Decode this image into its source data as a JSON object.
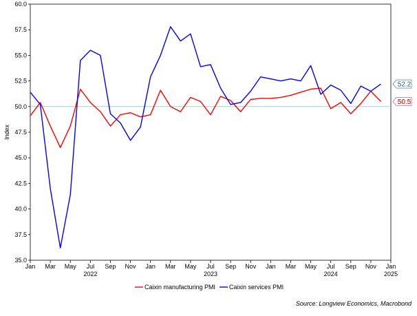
{
  "chart_data": {
    "type": "line",
    "ylabel": "Index",
    "ylim": [
      35.0,
      60.0
    ],
    "yticks": [
      "60.0",
      "57.5",
      "55.0",
      "52.5",
      "50.0",
      "47.5",
      "45.0",
      "42.5",
      "40.0",
      "37.5",
      "35.0"
    ],
    "xlim": [
      "2022-01",
      "2025-01"
    ],
    "xticks": [
      {
        "date": "2022-01",
        "label": "Jan",
        "year": ""
      },
      {
        "date": "2022-03",
        "label": "Mar",
        "year": ""
      },
      {
        "date": "2022-05",
        "label": "May",
        "year": ""
      },
      {
        "date": "2022-07",
        "label": "Jul",
        "year": "2022"
      },
      {
        "date": "2022-09",
        "label": "Sep",
        "year": ""
      },
      {
        "date": "2022-11",
        "label": "Nov",
        "year": ""
      },
      {
        "date": "2023-01",
        "label": "Jan",
        "year": ""
      },
      {
        "date": "2023-03",
        "label": "Mar",
        "year": ""
      },
      {
        "date": "2023-05",
        "label": "May",
        "year": ""
      },
      {
        "date": "2023-07",
        "label": "Jul",
        "year": "2023"
      },
      {
        "date": "2023-09",
        "label": "Sep",
        "year": ""
      },
      {
        "date": "2023-11",
        "label": "Nov",
        "year": ""
      },
      {
        "date": "2024-01",
        "label": "Jan",
        "year": ""
      },
      {
        "date": "2024-03",
        "label": "Mar",
        "year": ""
      },
      {
        "date": "2024-05",
        "label": "May",
        "year": ""
      },
      {
        "date": "2024-07",
        "label": "Jul",
        "year": "2024"
      },
      {
        "date": "2024-09",
        "label": "Sep",
        "year": ""
      },
      {
        "date": "2024-11",
        "label": "Nov",
        "year": ""
      },
      {
        "date": "2025-01",
        "label": "Jan",
        "year": "2025"
      }
    ],
    "reference_line": 50.0,
    "series": [
      {
        "name": "Caixin manufacturing PMI",
        "color": "#ff0000",
        "end_label": "50.5",
        "x": [
          "2022-01",
          "2022-02",
          "2022-03",
          "2022-04",
          "2022-05",
          "2022-06",
          "2022-07",
          "2022-08",
          "2022-09",
          "2022-10",
          "2022-11",
          "2022-12",
          "2023-01",
          "2023-02",
          "2023-03",
          "2023-04",
          "2023-05",
          "2023-06",
          "2023-07",
          "2023-08",
          "2023-09",
          "2023-10",
          "2023-11",
          "2023-12",
          "2024-01",
          "2024-02",
          "2024-03",
          "2024-04",
          "2024-05",
          "2024-06",
          "2024-07",
          "2024-08",
          "2024-09",
          "2024-10",
          "2024-11",
          "2024-12"
        ],
        "values": [
          49.1,
          50.4,
          48.1,
          46.0,
          48.1,
          51.7,
          50.4,
          49.5,
          48.1,
          49.2,
          49.4,
          49.0,
          49.2,
          51.6,
          50.0,
          49.5,
          50.9,
          50.5,
          49.2,
          51.0,
          50.6,
          49.5,
          50.7,
          50.8,
          50.8,
          50.9,
          51.1,
          51.4,
          51.7,
          51.8,
          49.8,
          50.4,
          49.3,
          50.3,
          51.5,
          50.5
        ]
      },
      {
        "name": "Caixin services PMI",
        "color": "#0000ff",
        "end_label": "52.2",
        "x": [
          "2022-01",
          "2022-02",
          "2022-03",
          "2022-04",
          "2022-05",
          "2022-06",
          "2022-07",
          "2022-08",
          "2022-09",
          "2022-10",
          "2022-11",
          "2022-12",
          "2023-01",
          "2023-02",
          "2023-03",
          "2023-04",
          "2023-05",
          "2023-06",
          "2023-07",
          "2023-08",
          "2023-09",
          "2023-10",
          "2023-11",
          "2023-12",
          "2024-01",
          "2024-02",
          "2024-03",
          "2024-04",
          "2024-05",
          "2024-06",
          "2024-07",
          "2024-08",
          "2024-09",
          "2024-10",
          "2024-11",
          "2024-12"
        ],
        "values": [
          51.4,
          50.2,
          42.0,
          36.2,
          41.4,
          54.5,
          55.5,
          55.0,
          49.3,
          48.4,
          46.7,
          48.0,
          52.9,
          55.0,
          57.8,
          56.4,
          57.1,
          53.9,
          54.1,
          51.8,
          50.2,
          50.4,
          51.5,
          52.9,
          52.7,
          52.5,
          52.7,
          52.5,
          54.0,
          51.2,
          52.1,
          51.6,
          50.3,
          52.0,
          51.5,
          52.2
        ]
      }
    ],
    "source": "Source: Longview Economics, Macrobond"
  }
}
